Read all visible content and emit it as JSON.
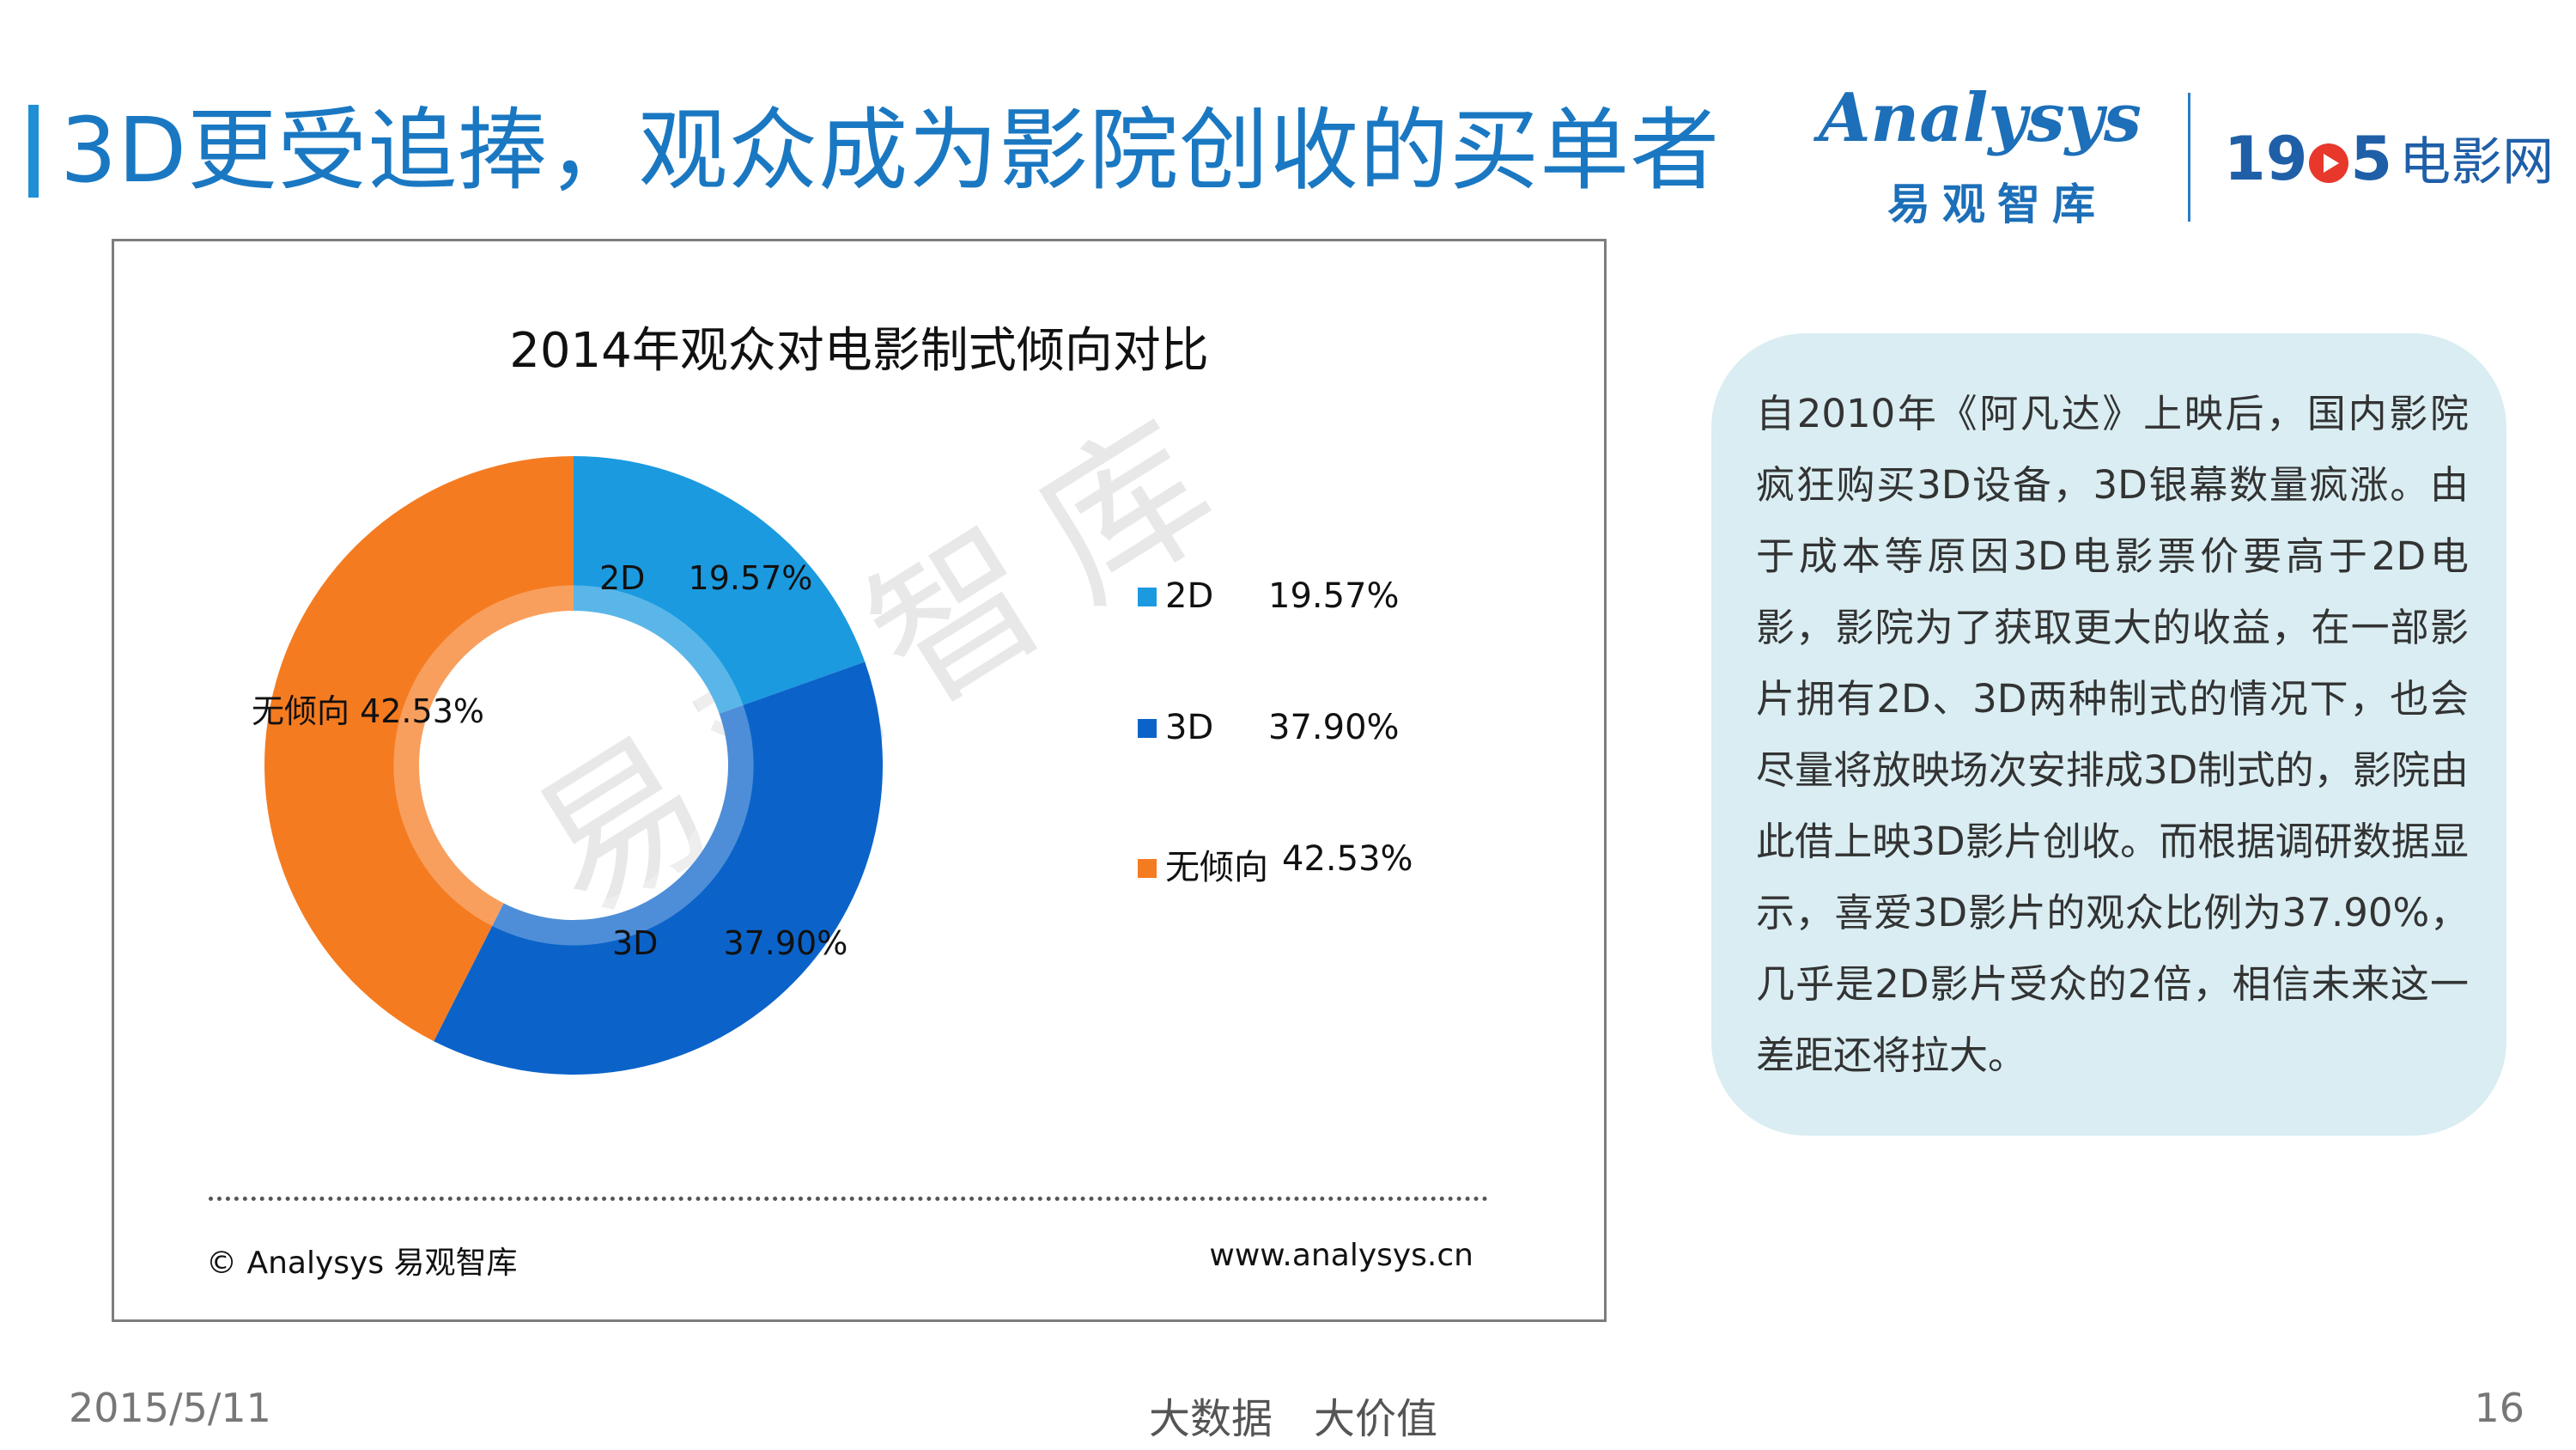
{
  "header": {
    "title": "3D更受追捧，观众成为影院创收的买单者",
    "logo_brand": "Analysys",
    "logo_sub": "易观智库",
    "partner_logo_num_left": "19",
    "partner_logo_num_right": "5",
    "partner_logo_cn": "电影网"
  },
  "colors": {
    "accent": "#1f8fd6",
    "2D": "#1b9ae0",
    "3D": "#0b63c9",
    "none": "#f57b20",
    "note_bg": "#d9edf2"
  },
  "chart_data": {
    "type": "donut",
    "title": "2014年观众对电影制式倾向对比",
    "categories": [
      "2D",
      "3D",
      "无倾向"
    ],
    "values": [
      19.57,
      37.9,
      42.53
    ],
    "value_labels": [
      "19.57%",
      "37.90%",
      "42.53%"
    ],
    "legend_position": "right",
    "watermark": "易观智库"
  },
  "chart_footer": {
    "copyright": "© Analysys 易观智库",
    "website": "www.analysys.cn"
  },
  "note": {
    "text": "自2010年《阿凡达》上映后，国内影院疯狂购买3D设备，3D银幕数量疯涨。由于成本等原因3D电影票价要高于2D电影，影院为了获取更大的收益，在一部影片拥有2D、3D两种制式的情况下，也会尽量将放映场次安排成3D制式的，影院由此借上映3D影片创收。而根据调研数据显示，喜爱3D影片的观众比例为37.90%，几乎是2D影片受众的2倍，相信未来这一差距还将拉大。"
  },
  "footer": {
    "date": "2015/5/11",
    "slogan": "大数据　大价值",
    "page": "16"
  }
}
